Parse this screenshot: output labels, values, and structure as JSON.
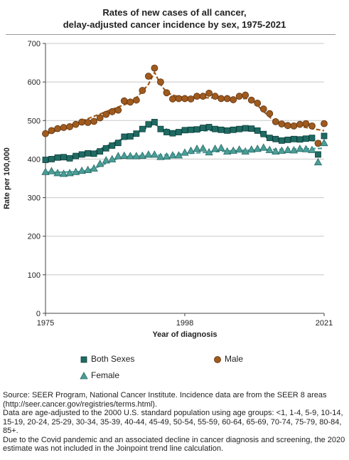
{
  "chart_data": {
    "type": "line",
    "title_lines": [
      "Rates of new cases of all cancer,",
      "delay-adjusted cancer incidence by sex, 1975-2021"
    ],
    "xlabel": "Year of diagnosis",
    "ylabel": "Rate per 100,000",
    "xlim": [
      1975,
      2021
    ],
    "ylim": [
      0,
      700
    ],
    "x_ticks": [
      1975,
      1998,
      2021
    ],
    "y_ticks": [
      0,
      100,
      200,
      300,
      400,
      500,
      600,
      700
    ],
    "grid": "horizontal",
    "legend_position": "bottom",
    "colors": {
      "both": "#1f6b63",
      "male": "#a05a1e",
      "female": "#4a9e98",
      "trend": "#a05a1e"
    },
    "series": [
      {
        "name": "Both Sexes",
        "marker": "square",
        "x": [
          1975,
          1976,
          1977,
          1978,
          1979,
          1980,
          1981,
          1982,
          1983,
          1984,
          1985,
          1986,
          1987,
          1988,
          1989,
          1990,
          1991,
          1992,
          1993,
          1994,
          1995,
          1996,
          1997,
          1998,
          1999,
          2000,
          2001,
          2002,
          2003,
          2004,
          2005,
          2006,
          2007,
          2008,
          2009,
          2010,
          2011,
          2012,
          2013,
          2014,
          2015,
          2016,
          2017,
          2018,
          2019,
          2020,
          2021
        ],
        "y": [
          398,
          400,
          404,
          405,
          402,
          408,
          412,
          415,
          414,
          420,
          428,
          435,
          442,
          458,
          459,
          466,
          478,
          490,
          496,
          478,
          470,
          467,
          470,
          475,
          476,
          477,
          481,
          483,
          478,
          476,
          474,
          476,
          478,
          480,
          479,
          474,
          465,
          455,
          452,
          448,
          450,
          452,
          451,
          453,
          455,
          412,
          460
        ],
        "trend": [
          398,
          398,
          401,
          404,
          407,
          410,
          413,
          416,
          419,
          426,
          433,
          440,
          447,
          454,
          461,
          468,
          475,
          483,
          491,
          482,
          477,
          472,
          471,
          471,
          472,
          473,
          474,
          474,
          475,
          475,
          475,
          475,
          475,
          475,
          475,
          468,
          460,
          452,
          450,
          449,
          449,
          449,
          448,
          448,
          448,
          447,
          446
        ]
      },
      {
        "name": "Male",
        "marker": "circle",
        "x": [
          1975,
          1976,
          1977,
          1978,
          1979,
          1980,
          1981,
          1982,
          1983,
          1984,
          1985,
          1986,
          1987,
          1988,
          1989,
          1990,
          1991,
          1992,
          1993,
          1994,
          1995,
          1996,
          1997,
          1998,
          1999,
          2000,
          2001,
          2002,
          2003,
          2004,
          2005,
          2006,
          2007,
          2008,
          2009,
          2010,
          2011,
          2012,
          2013,
          2014,
          2015,
          2016,
          2017,
          2018,
          2019,
          2020,
          2021
        ],
        "y": [
          466,
          474,
          479,
          482,
          484,
          490,
          496,
          495,
          498,
          507,
          516,
          523,
          527,
          551,
          548,
          553,
          578,
          615,
          636,
          600,
          572,
          556,
          557,
          557,
          556,
          563,
          563,
          571,
          563,
          557,
          557,
          554,
          563,
          566,
          553,
          545,
          530,
          518,
          497,
          491,
          487,
          486,
          490,
          492,
          486,
          441,
          492
        ],
        "trend": [
          466,
          469,
          475,
          481,
          487,
          493,
          499,
          505,
          511,
          517,
          523,
          529,
          535,
          541,
          547,
          559,
          576,
          594,
          625,
          594,
          573,
          566,
          562,
          560,
          560,
          560,
          559,
          559,
          559,
          558,
          558,
          557,
          557,
          557,
          557,
          539,
          524,
          509,
          497,
          494,
          491,
          488,
          485,
          482,
          479,
          476,
          474
        ]
      },
      {
        "name": "Female",
        "marker": "triangle",
        "x": [
          1975,
          1976,
          1977,
          1978,
          1979,
          1980,
          1981,
          1982,
          1983,
          1984,
          1985,
          1986,
          1987,
          1988,
          1989,
          1990,
          1991,
          1992,
          1993,
          1994,
          1995,
          1996,
          1997,
          1998,
          1999,
          2000,
          2001,
          2002,
          2003,
          2004,
          2005,
          2006,
          2007,
          2008,
          2009,
          2010,
          2011,
          2012,
          2013,
          2014,
          2015,
          2016,
          2017,
          2018,
          2019,
          2020,
          2021
        ],
        "y": [
          367,
          369,
          364,
          362,
          364,
          367,
          370,
          372,
          376,
          388,
          397,
          400,
          408,
          409,
          408,
          408,
          409,
          412,
          412,
          406,
          407,
          410,
          410,
          417,
          422,
          427,
          428,
          418,
          427,
          429,
          420,
          422,
          425,
          420,
          425,
          427,
          430,
          424,
          420,
          422,
          424,
          423,
          427,
          426,
          424,
          392,
          442
        ],
        "trend": [
          366,
          366,
          366,
          366,
          367,
          367,
          368,
          371,
          376,
          382,
          389,
          396,
          402,
          405,
          407,
          408,
          409,
          409,
          410,
          410,
          411,
          412,
          413,
          414,
          415,
          416,
          417,
          418,
          419,
          420,
          421,
          422,
          422,
          423,
          423,
          424,
          424,
          425,
          425,
          425,
          426,
          426,
          426,
          427,
          427,
          427,
          428
        ]
      }
    ]
  },
  "legend": {
    "both_label": "Both Sexes",
    "male_label": "Male",
    "female_label": "Female"
  },
  "footnote": {
    "line1": "Source: SEER Program, National Cancer Institute. Incidence data are from the SEER 8 areas (http://seer.cancer.gov/registries/terms.html).",
    "line2": "Data are age-adjusted to the 2000 U.S. standard population using age groups: <1, 1-4, 5-9, 10-14, 15-19, 20-24, 25-29, 30-34, 35-39, 40-44, 45-49, 50-54, 55-59, 60-64, 65-69, 70-74, 75-79, 80-84, 85+.",
    "line3": "Due to the Covid pandemic and an associated decline in cancer diagnosis and screening, the 2020 estimate was not included in the Joinpoint trend line calculation."
  }
}
